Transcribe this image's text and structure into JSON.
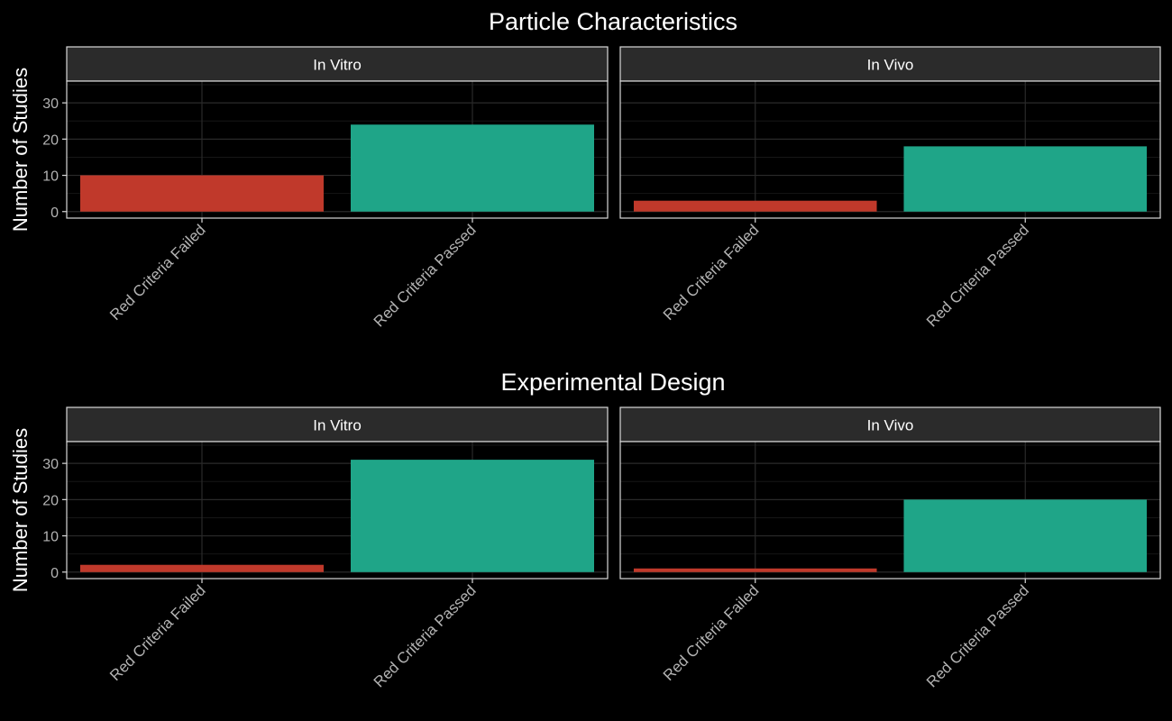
{
  "chart_data": [
    {
      "type": "bar",
      "title": "Particle Characteristics",
      "ylabel": "Number of Studies",
      "xlabel": "",
      "ylim": [
        -1.8,
        36
      ],
      "yticks": [
        0,
        10,
        20,
        30
      ],
      "categories": [
        "Red Criteria Failed",
        "Red Criteria Passed"
      ],
      "colors": [
        "#c0392b",
        "#1fa588"
      ],
      "grid": true,
      "facets": [
        {
          "name": "In Vitro",
          "values": [
            10,
            24
          ]
        },
        {
          "name": "In Vivo",
          "values": [
            3,
            18
          ]
        }
      ]
    },
    {
      "type": "bar",
      "title": "Experimental Design",
      "ylabel": "Number of Studies",
      "xlabel": "",
      "ylim": [
        -1.8,
        36
      ],
      "yticks": [
        0,
        10,
        20,
        30
      ],
      "categories": [
        "Red Criteria Failed",
        "Red Criteria Passed"
      ],
      "colors": [
        "#c0392b",
        "#1fa588"
      ],
      "grid": true,
      "facets": [
        {
          "name": "In Vitro",
          "values": [
            2,
            31
          ]
        },
        {
          "name": "In Vivo",
          "values": [
            1,
            20
          ]
        }
      ]
    }
  ],
  "theme": {
    "background": "#000000",
    "panel_border": "#d9d9d9",
    "strip_fill": "#2b2b2b",
    "grid_major": "#2a2a2a",
    "grid_minor": "#161616",
    "text": "#ffffff",
    "tick_text": "#b3b3b3"
  }
}
